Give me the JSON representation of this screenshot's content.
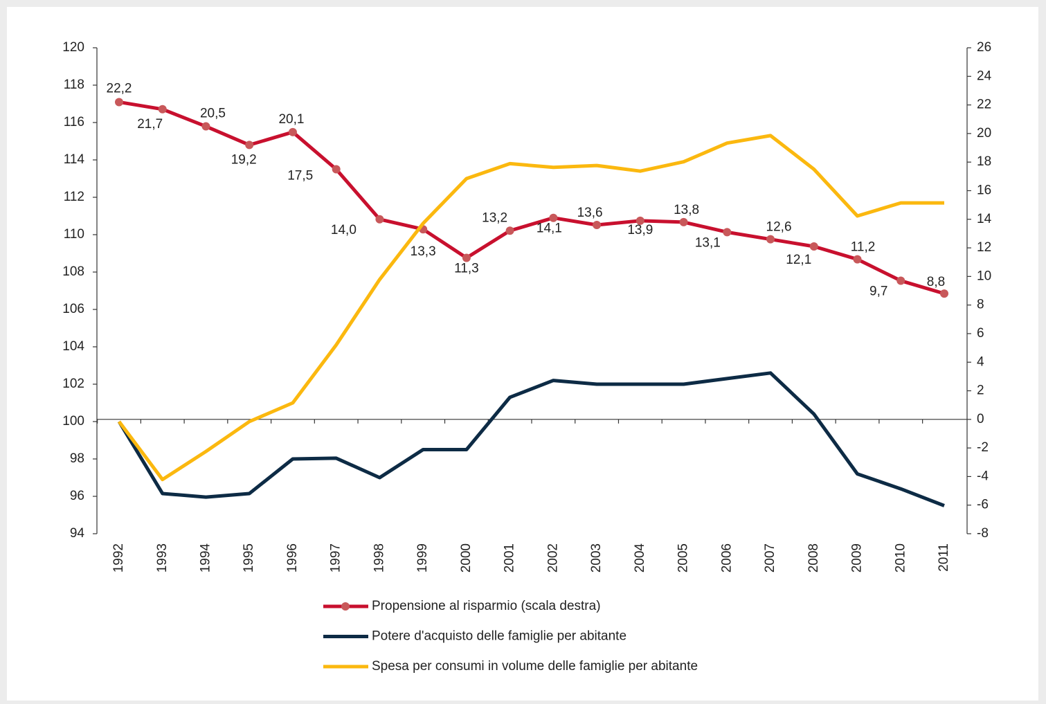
{
  "chart_data": {
    "type": "line",
    "categories": [
      "1992",
      "1993",
      "1994",
      "1995",
      "1996",
      "1997",
      "1998",
      "1999",
      "2000",
      "2001",
      "2002",
      "2003",
      "2004",
      "2005",
      "2006",
      "2007",
      "2008",
      "2009",
      "2010",
      "2011"
    ],
    "ylim": [
      94,
      120
    ],
    "yticks": [
      94,
      96,
      98,
      100,
      102,
      104,
      106,
      108,
      110,
      112,
      114,
      116,
      118,
      120
    ],
    "y2lim": [
      -8,
      26
    ],
    "y2ticks": [
      -8,
      -6,
      -4,
      -2,
      0,
      2,
      4,
      6,
      8,
      10,
      12,
      14,
      16,
      18,
      20,
      22,
      24,
      26
    ],
    "legend": "bottom",
    "series": [
      {
        "name": "Propensione al risparmio (scala destra)",
        "color": "#c8102e",
        "axis": "y2",
        "markers": true,
        "values": [
          22.2,
          21.7,
          20.5,
          19.2,
          20.1,
          17.5,
          14.0,
          13.3,
          11.3,
          13.2,
          14.1,
          13.6,
          13.9,
          13.8,
          13.1,
          12.6,
          12.1,
          11.2,
          9.7,
          8.8
        ],
        "value_labels": [
          "22,2",
          "21,7",
          "20,5",
          "19,2",
          "20,1",
          "17,5",
          "14,0",
          "13,3",
          "11,3",
          "13,2",
          "14,1",
          "13,6",
          "13,9",
          "13,8",
          "13,1",
          "12,6",
          "12,1",
          "11,2",
          "9,7",
          "8,8"
        ]
      },
      {
        "name": "Potere d'acquisto delle famiglie per abitante",
        "color": "#0d2b45",
        "values": [
          100,
          96.15,
          95.96,
          96.15,
          98.0,
          98.04,
          97.0,
          98.5,
          98.5,
          101.3,
          102.2,
          102.0,
          102.0,
          102.0,
          102.3,
          102.6,
          100.4,
          97.2,
          96.4,
          95.5
        ]
      },
      {
        "name": "Spesa per consumi in volume delle famiglie per abitante",
        "color": "#fbb80f",
        "values": [
          100,
          96.9,
          98.4,
          100.0,
          101.0,
          104.1,
          107.6,
          110.6,
          113.0,
          113.8,
          113.6,
          113.7,
          113.4,
          113.9,
          114.9,
          115.3,
          113.5,
          111.0,
          111.7,
          111.7
        ]
      }
    ]
  }
}
